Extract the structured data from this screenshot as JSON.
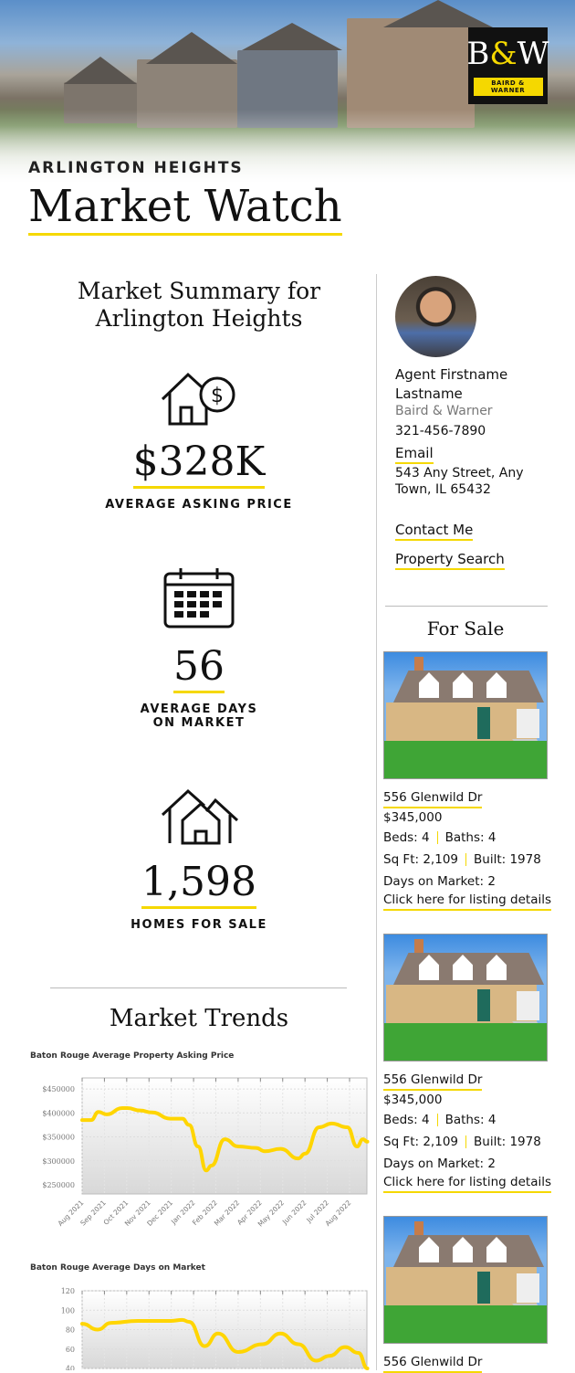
{
  "header": {
    "kicker": "ARLINGTON HEIGHTS",
    "title": "Market Watch",
    "logo": {
      "monogram_b": "B",
      "monogram_amp": "&",
      "monogram_w": "W",
      "wordmark": "BAIRD & WARNER"
    }
  },
  "summary": {
    "heading": "Market Summary for Arlington Heights",
    "stats": [
      {
        "icon": "house-dollar-icon",
        "value": "$328K",
        "label": "AVERAGE ASKING PRICE"
      },
      {
        "icon": "calendar-icon",
        "value": "56",
        "label": "AVERAGE DAYS ON MARKET"
      },
      {
        "icon": "houses-icon",
        "value": "1,598",
        "label": "HOMES FOR SALE"
      }
    ]
  },
  "trends": {
    "heading": "Market Trends"
  },
  "agent": {
    "name": "Agent Firstname Lastname",
    "company": "Baird & Warner",
    "phone": "321-456-7890",
    "email_label": "Email",
    "address": "543 Any Street, Any Town, IL 65432",
    "contact_label": "Contact Me",
    "search_label": "Property Search"
  },
  "for_sale": {
    "heading": "For Sale",
    "listings": [
      {
        "address": "556 Glenwild Dr",
        "price": "$345,000",
        "beds_label": "Beds:",
        "beds": "4",
        "baths_label": "Baths:",
        "baths": "4",
        "sqft_label": "Sq Ft:",
        "sqft": "2,109",
        "built_label": "Built:",
        "built": "1978",
        "dom_label": "Days on Market:",
        "dom": "2",
        "details_link": "Click here for listing details"
      },
      {
        "address": "556 Glenwild Dr",
        "price": "$345,000",
        "beds_label": "Beds:",
        "beds": "4",
        "baths_label": "Baths:",
        "baths": "4",
        "sqft_label": "Sq Ft:",
        "sqft": "2,109",
        "built_label": "Built:",
        "built": "1978",
        "dom_label": "Days on Market:",
        "dom": "2",
        "details_link": "Click here for listing details"
      },
      {
        "address": "556 Glenwild Dr"
      }
    ]
  },
  "colors": {
    "accent": "#f5d800",
    "line": "#ffd500",
    "text": "#111111"
  },
  "chart_data": [
    {
      "type": "line",
      "title": "Baton Rouge Average Property Asking Price",
      "ylim": [
        231000,
        473000
      ],
      "yticks": [
        "$450000",
        "$400000",
        "$350000",
        "$300000",
        "$250000"
      ],
      "ytick_values": [
        450000,
        400000,
        350000,
        300000,
        250000
      ],
      "xticks": [
        "Aug 2021",
        "Sep 2021",
        "Oct 2021",
        "Nov 2021",
        "Dec 2021",
        "Jan 2022",
        "Feb 2022",
        "Mar 2022",
        "Apr 2022",
        "May 2022",
        "Jun 2022",
        "Jul 2022",
        "Aug 2022"
      ],
      "grid": true,
      "x": [
        "2021-08-01",
        "2021-08-13",
        "2021-08-23",
        "2021-09-04",
        "2021-09-25",
        "2021-10-02",
        "2021-10-19",
        "2021-11-05",
        "2021-11-30",
        "2021-12-16",
        "2021-12-25",
        "2022-01-07",
        "2022-01-18",
        "2022-01-25",
        "2022-02-13",
        "2022-03-01",
        "2022-03-25",
        "2022-04-07",
        "2022-04-28",
        "2022-05-22",
        "2022-06-01",
        "2022-06-20",
        "2022-07-07",
        "2022-07-28",
        "2022-08-11",
        "2022-08-19",
        "2022-08-25"
      ],
      "y": [
        385000,
        385000,
        402000,
        397000,
        410000,
        410000,
        405000,
        401000,
        388000,
        388000,
        375000,
        330000,
        280000,
        290000,
        345000,
        330000,
        327000,
        320000,
        325000,
        305000,
        315000,
        370000,
        378000,
        370000,
        330000,
        345000,
        340000
      ]
    },
    {
      "type": "line",
      "title": "Baton Rouge Average Days on Market",
      "ylim": [
        40,
        120
      ],
      "yticks": [
        "120",
        "100",
        "80",
        "60",
        "40"
      ],
      "ytick_values": [
        120,
        100,
        80,
        60,
        40
      ],
      "grid": true,
      "x": [
        "2021-08-01",
        "2021-08-22",
        "2021-09-10",
        "2021-10-16",
        "2021-12-01",
        "2021-12-16",
        "2021-12-25",
        "2022-01-16",
        "2022-02-04",
        "2022-03-01",
        "2022-04-04",
        "2022-04-28",
        "2022-05-22",
        "2022-06-16",
        "2022-07-04",
        "2022-07-25",
        "2022-08-13",
        "2022-08-25"
      ],
      "y": [
        86,
        80,
        87,
        89,
        89,
        90,
        88,
        63,
        76,
        57,
        65,
        76,
        65,
        48,
        53,
        62,
        56,
        40
      ]
    }
  ]
}
